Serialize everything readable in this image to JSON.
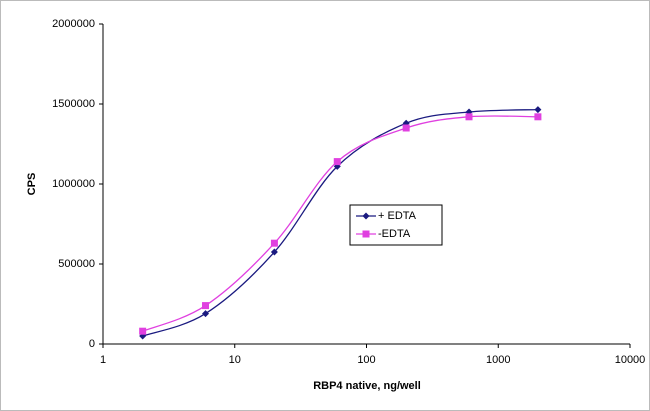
{
  "chart_data": {
    "type": "line",
    "x_label": "RBP4 native, ng/well",
    "y_label": "CPS",
    "xscale": "log",
    "xlim": [
      1,
      10000
    ],
    "xticks": [
      1,
      10,
      100,
      1000,
      10000
    ],
    "ylim": [
      0,
      2000000
    ],
    "yticks": [
      0,
      500000,
      1000000,
      1500000,
      2000000
    ],
    "grid": false,
    "legend": "center",
    "series": [
      {
        "name": "+ EDTA",
        "color": "#1a1a80",
        "marker": "diamond",
        "x": [
          2,
          6,
          20,
          60,
          200,
          600,
          2000
        ],
        "values": [
          50000,
          190000,
          575000,
          1110000,
          1380000,
          1450000,
          1465000
        ]
      },
      {
        "name": "-EDTA",
        "color": "#e040e0",
        "marker": "square",
        "x": [
          2,
          6,
          20,
          60,
          200,
          600,
          2000
        ],
        "values": [
          80000,
          240000,
          630000,
          1140000,
          1350000,
          1420000,
          1420000
        ]
      }
    ]
  }
}
